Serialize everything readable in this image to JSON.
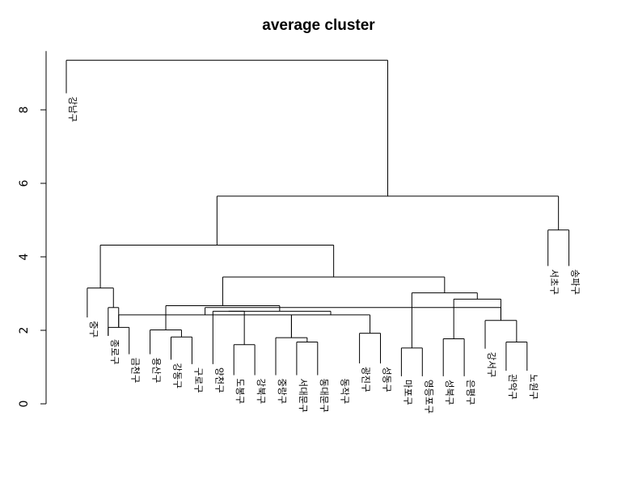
{
  "chart_data": {
    "type": "dendrogram",
    "title": "average cluster",
    "xlabel": "",
    "ylabel": "",
    "y_ticks": [
      0,
      2,
      4,
      6,
      8
    ],
    "ylim": [
      0,
      9.6
    ],
    "leaves": [
      {
        "label": "강남구",
        "height": 8.45
      },
      {
        "label": "중구",
        "height": 2.35
      },
      {
        "label": "종로구",
        "height": 1.85
      },
      {
        "label": "금천구",
        "height": 1.35
      },
      {
        "label": "용산구",
        "height": 1.35
      },
      {
        "label": "강동구",
        "height": 1.2
      },
      {
        "label": "구로구",
        "height": 1.08
      },
      {
        "label": "양천구",
        "height": 1.08
      },
      {
        "label": "도봉구",
        "height": 0.78
      },
      {
        "label": "강북구",
        "height": 0.78
      },
      {
        "label": "중랑구",
        "height": 0.78
      },
      {
        "label": "서대문구",
        "height": 0.78
      },
      {
        "label": "동대문구",
        "height": 0.78
      },
      {
        "label": "동작구",
        "height": 0.78
      },
      {
        "label": "광진구",
        "height": 1.1
      },
      {
        "label": "성동구",
        "height": 1.1
      },
      {
        "label": "마포구",
        "height": 0.75
      },
      {
        "label": "영등포구",
        "height": 0.75
      },
      {
        "label": "성북구",
        "height": 0.75
      },
      {
        "label": "은평구",
        "height": 0.75
      },
      {
        "label": "강서구",
        "height": 1.5
      },
      {
        "label": "관악구",
        "height": 0.9
      },
      {
        "label": "노원구",
        "height": 0.9
      },
      {
        "label": "서초구",
        "height": 3.75
      },
      {
        "label": "송파구",
        "height": 3.75
      }
    ],
    "merges": [
      {
        "a": 9,
        "b": 10,
        "height": 1.61
      },
      {
        "a": 12,
        "b": 13,
        "height": 1.68
      },
      {
        "a": 6,
        "b": 7,
        "height": 1.82
      },
      {
        "a": 15,
        "b": 16,
        "height": 1.92
      },
      {
        "a": 3,
        "b": 4,
        "height": 2.08
      },
      {
        "a": 17,
        "b": 18,
        "height": 1.52
      },
      {
        "a": 19,
        "b": 20,
        "height": 1.77
      },
      {
        "a": 22,
        "b": 23,
        "height": 1.68
      },
      {
        "a": 11,
        "m": 1,
        "height": 1.8
      },
      {
        "a": 5,
        "m": 2,
        "height": 2.01
      },
      {
        "a": 21,
        "m": 7,
        "height": 2.27
      },
      {
        "m": 8,
        "m2": 4,
        "height": 2.42
      },
      {
        "a": 8,
        "m": 0,
        "height": 2.52
      },
      {
        "m": 10,
        "m2": 11,
        "height": 2.62
      },
      {
        "a": 24,
        "b": 25,
        "height": 4.73
      }
    ]
  }
}
